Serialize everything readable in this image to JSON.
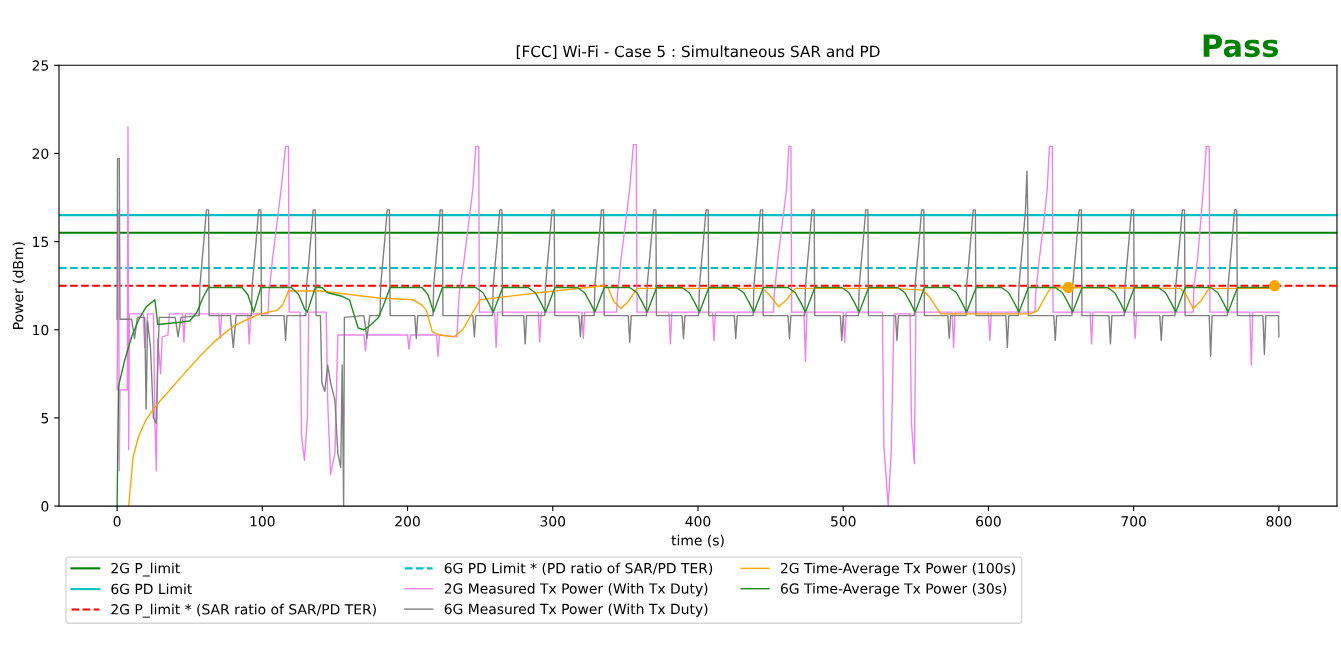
{
  "chart_data": {
    "type": "line",
    "title": "[FCC] Wi-Fi - Case 5 : Simultaneous SAR and PD",
    "xlabel": "time (s)",
    "ylabel": "Power (dBm)",
    "annotations": [
      "Pass"
    ],
    "xlim": [
      -40,
      840
    ],
    "ylim": [
      0,
      25
    ],
    "xticks": [
      0,
      100,
      200,
      300,
      400,
      500,
      600,
      700,
      800
    ],
    "yticks": [
      0,
      5,
      10,
      15,
      20,
      25
    ],
    "grid": false,
    "legend": "bottom",
    "ref_lines": [
      {
        "axis": "y",
        "value": 15.5,
        "label": "2G P_limit",
        "color": "#008000",
        "line_style": "solid"
      },
      {
        "axis": "y",
        "value": 16.5,
        "label": "6G PD Limit",
        "color": "#00bfbf",
        "line_style": "solid"
      },
      {
        "axis": "y",
        "value": 12.5,
        "label": "2G P_limit * (SAR ratio of SAR/PD TER)",
        "color": "#ff0000",
        "line_style": "dashed"
      },
      {
        "axis": "y",
        "value": 13.5,
        "label": "6G PD Limit * (PD ratio of SAR/PD TER)",
        "color": "#00bfbf",
        "line_style": "dashed"
      }
    ],
    "series": [
      {
        "name": "2G Measured Tx Power (With Tx Duty)",
        "color": "#ee82ee",
        "x": [
          0,
          1,
          1.5,
          2,
          7,
          7.5,
          8,
          8.5,
          18,
          19,
          21,
          25,
          26,
          27,
          28,
          30,
          31,
          35,
          36,
          45,
          46,
          47,
          70,
          71,
          72,
          90,
          91,
          92,
          104,
          104.5,
          107,
          110,
          113,
          116,
          118,
          118.5,
          126,
          127,
          129,
          131,
          132,
          144,
          145,
          147,
          150,
          152,
          170,
          171,
          172,
          200,
          201,
          202,
          220,
          221,
          222,
          234,
          235.5,
          239,
          242,
          245,
          247,
          249,
          249.5,
          260,
          261,
          262,
          290,
          291,
          292,
          320,
          321,
          322,
          344,
          344.5,
          347,
          350,
          353,
          355.5,
          357.5,
          358,
          380,
          381,
          382,
          410,
          411,
          412,
          452,
          452.5,
          455,
          458,
          461,
          462.5,
          464,
          464.5,
          473,
          474,
          475,
          500,
          501,
          502,
          527,
          528,
          531,
          533,
          535,
          546,
          547,
          549,
          550,
          575,
          576,
          577,
          600,
          601,
          602,
          632,
          632.5,
          635,
          638,
          640.5,
          642,
          644,
          644.5,
          670,
          671,
          672,
          700,
          701,
          702,
          741,
          741.5,
          744,
          746,
          748,
          750,
          752,
          752.5,
          780,
          781,
          782,
          800
        ],
        "values": [
          6.6,
          16.8,
          2.0,
          6.6,
          6.6,
          21.5,
          3.2,
          10.9,
          10.9,
          9,
          10.9,
          10.9,
          5,
          2.0,
          9.5,
          7.5,
          9.6,
          9.7,
          10.9,
          10.9,
          9.3,
          10.9,
          10.9,
          9.5,
          10.9,
          10.9,
          9.2,
          10.9,
          10.9,
          12,
          14,
          16,
          18,
          20.4,
          20.4,
          11,
          11,
          4,
          2.6,
          5,
          11,
          11,
          6,
          1.8,
          3,
          9.7,
          9.7,
          8.8,
          9.7,
          9.7,
          8.9,
          9.7,
          9.7,
          8.5,
          9.7,
          9.6,
          12,
          14,
          16,
          18,
          20.4,
          20.4,
          11,
          11,
          9,
          11,
          11,
          9.3,
          11,
          11,
          9.5,
          11,
          11,
          12,
          14,
          16,
          18,
          20.5,
          20.5,
          11,
          11,
          9.2,
          11,
          11,
          9.4,
          11,
          11,
          12,
          14,
          16,
          18,
          20.4,
          20.4,
          11,
          11,
          8.2,
          11,
          11,
          9.3,
          11,
          11,
          3.4,
          0,
          3,
          10.9,
          10.9,
          4.7,
          2.4,
          11,
          11,
          9,
          11,
          11,
          9.4,
          11,
          11,
          12,
          14,
          16,
          18,
          20.4,
          20.4,
          11,
          11,
          9.2,
          11,
          11,
          9.5,
          11,
          11,
          12.5,
          14,
          16,
          18,
          20.4,
          20.4,
          11,
          11,
          8,
          11,
          11
        ]
      },
      {
        "name": "6G Measured Tx Power (With Tx Duty)",
        "color": "#808080",
        "x": [
          0,
          0.3,
          1.5,
          2,
          10,
          12,
          14,
          19,
          20,
          21,
          23,
          25,
          27,
          28,
          29,
          40,
          42,
          44,
          56.5,
          57,
          59.5,
          61.5,
          63,
          63.4,
          78,
          80,
          82,
          92.5,
          93,
          95.5,
          97.5,
          99,
          99.4,
          115,
          116,
          117,
          130,
          130.5,
          133,
          135,
          136.5,
          137,
          140,
          141,
          143,
          145,
          147,
          150,
          152,
          154,
          155,
          156,
          156.5,
          170,
          172,
          174,
          181,
          181.5,
          184,
          186,
          187.5,
          188,
          205,
          206,
          207,
          217.5,
          218,
          220.5,
          222.5,
          224,
          224.4,
          245,
          246,
          247,
          258.5,
          259,
          261.5,
          263.5,
          265,
          265.4,
          280,
          281,
          282,
          294.5,
          295,
          297.5,
          299.5,
          301,
          301.4,
          318,
          319,
          320,
          328.5,
          329,
          331.5,
          333.5,
          335,
          335.4,
          352,
          353,
          354,
          364.5,
          365,
          367.5,
          369.5,
          371,
          371.4,
          389,
          390,
          391,
          400.5,
          401,
          403.5,
          405.5,
          407,
          407.4,
          425,
          426,
          427,
          438,
          438.5,
          441,
          443,
          444.5,
          444.9,
          462,
          463,
          464,
          473.5,
          474,
          476.5,
          478.5,
          480,
          480.4,
          498,
          499,
          500,
          510.5,
          511,
          513.5,
          515.5,
          517,
          517.4,
          536,
          537,
          538,
          549,
          549.5,
          552,
          554,
          555.5,
          555.9,
          572,
          573,
          574,
          584.5,
          585,
          587.5,
          589.5,
          591,
          591.4,
          612,
          613,
          614,
          620.5,
          621,
          623.5,
          625.5,
          626.5,
          627,
          627.4,
          645,
          646,
          647,
          657.5,
          658,
          660.5,
          662.5,
          664,
          664.4,
          683,
          684,
          685,
          693.5,
          694,
          696.5,
          698.5,
          700,
          700.4,
          718,
          719,
          720,
          728.5,
          729,
          731.5,
          733.5,
          735,
          735.4,
          752,
          753,
          754,
          764.5,
          765,
          767.5,
          769.5,
          771,
          771.4,
          789,
          790,
          791,
          799.7,
          800
        ],
        "values": [
          10.6,
          19.7,
          19.7,
          10.6,
          10.6,
          9.5,
          10.7,
          10.7,
          5.5,
          10.5,
          9,
          5,
          4.7,
          8,
          10.7,
          10.7,
          9.6,
          10.7,
          10.8,
          12.5,
          14.8,
          16.8,
          16.8,
          10.8,
          10.8,
          9.0,
          10.8,
          10.8,
          12.5,
          14.8,
          16.8,
          16.8,
          10.8,
          10.8,
          9.4,
          10.8,
          10.8,
          12.5,
          14.8,
          16.8,
          16.8,
          10.8,
          10.8,
          7,
          6.5,
          8,
          7,
          6,
          3,
          2.2,
          8,
          0,
          10.7,
          10.8,
          9.5,
          10.8,
          10.8,
          12.5,
          14.8,
          16.8,
          16.8,
          10.8,
          10.8,
          9.5,
          10.8,
          10.8,
          12.5,
          14.8,
          16.8,
          16.8,
          10.8,
          10.8,
          9.6,
          10.8,
          10.8,
          12.5,
          14.8,
          16.8,
          16.8,
          10.8,
          10.8,
          9.2,
          10.8,
          10.8,
          12.5,
          14.8,
          16.8,
          16.8,
          10.8,
          10.8,
          9.6,
          10.8,
          10.8,
          12.5,
          14.8,
          16.8,
          16.8,
          10.8,
          10.8,
          9.3,
          10.8,
          10.8,
          12.5,
          14.8,
          16.8,
          16.8,
          10.8,
          10.8,
          9.5,
          10.8,
          10.8,
          12.5,
          14.8,
          16.8,
          16.8,
          10.8,
          10.8,
          9.5,
          10.8,
          10.8,
          12.5,
          14.8,
          16.8,
          16.8,
          10.8,
          10.8,
          9.5,
          10.8,
          10.8,
          12.5,
          14.8,
          16.8,
          16.8,
          10.8,
          10.8,
          9.4,
          10.8,
          10.8,
          12.5,
          14.8,
          16.8,
          16.8,
          10.8,
          10.8,
          9.4,
          10.8,
          10.8,
          12.5,
          14.8,
          16.8,
          16.8,
          10.8,
          10.8,
          9.5,
          10.8,
          10.8,
          12.5,
          14.8,
          16.8,
          16.8,
          10.8,
          10.8,
          9.0,
          10.8,
          10.8,
          12.5,
          14.8,
          16.8,
          19.0,
          16.8,
          10.8,
          10.8,
          9.4,
          10.8,
          10.8,
          12.5,
          14.8,
          16.8,
          16.8,
          10.8,
          10.8,
          9.2,
          10.8,
          10.8,
          12.5,
          14.8,
          16.8,
          16.8,
          10.8,
          10.8,
          9.4,
          10.8,
          10.8,
          12.5,
          14.8,
          16.8,
          16.8,
          10.8,
          10.8,
          8.5,
          10.8,
          10.8,
          12.5,
          14.8,
          16.8,
          16.8,
          10.8,
          10.8,
          8.6,
          10.8,
          10.8,
          9.6
        ]
      },
      {
        "name": "2G Time-Average Tx Power (100s)",
        "color": "#ffa500",
        "x": [
          8,
          11,
          15,
          20,
          25,
          30,
          36.5,
          45,
          57,
          68,
          80,
          90,
          98.6,
          110,
          114,
          118,
          140,
          160,
          180,
          204,
          210,
          213,
          217,
          222,
          232,
          238,
          245,
          250,
          290,
          335,
          338,
          342,
          347,
          352,
          358,
          444,
          449,
          455.6,
          461,
          467,
          535,
          555,
          560,
          567,
          629,
          634,
          640,
          643,
          732,
          736,
          741,
          746,
          752,
          797
        ],
        "values": [
          0,
          2.8,
          4,
          4.9,
          5.5,
          6.0,
          6.6,
          7.4,
          8.5,
          9.4,
          10.2,
          10.6,
          10.9,
          11.1,
          11.4,
          12.2,
          12.2,
          12.0,
          11.8,
          11.7,
          11.4,
          11.1,
          9.9,
          9.7,
          9.6,
          10.0,
          11.0,
          11.7,
          12.1,
          12.5,
          12.4,
          11.6,
          11.2,
          11.6,
          12.35,
          12.35,
          12.0,
          11.3,
          11.7,
          12.35,
          12.35,
          12.25,
          11.8,
          10.9,
          10.9,
          11.1,
          12.0,
          12.4,
          12.35,
          12.0,
          11.2,
          11.6,
          12.35,
          12.35
        ]
      },
      {
        "name": "6G Time-Average Tx Power (30s)",
        "color": "#228b22",
        "x": [
          0,
          1,
          5,
          10,
          15,
          20,
          26,
          28,
          40,
          50,
          55,
          59,
          63,
          86,
          90,
          94,
          99,
          120,
          125,
          129,
          131,
          136.5,
          141,
          145,
          155,
          160,
          166,
          170,
          175,
          180,
          184,
          188,
          210,
          214,
          218,
          224,
          247,
          252,
          256,
          259,
          265.5,
          283,
          288,
          292,
          295,
          301.5,
          317,
          322,
          326,
          329,
          335.5,
          353,
          358,
          362,
          365,
          371.5,
          389,
          394,
          398,
          401,
          407.5,
          426.5,
          431.5,
          435.5,
          438.5,
          445,
          462,
          467,
          471,
          474,
          480.5,
          499,
          504,
          508,
          511,
          517.5,
          537.5,
          542.5,
          546.5,
          549.5,
          556,
          573,
          578,
          582,
          585,
          591.5,
          609,
          614,
          618,
          621,
          627.5,
          646,
          651,
          655,
          658,
          664.5,
          682,
          687,
          691,
          694,
          700.5,
          717,
          722,
          726,
          729,
          735.5,
          753,
          758,
          762,
          765,
          771.5,
          797
        ],
        "values": [
          0,
          6.8,
          8.2,
          9.6,
          10.6,
          11.3,
          11.7,
          10.3,
          10.4,
          10.5,
          11,
          11.8,
          12.4,
          12.4,
          12,
          11,
          12.4,
          12.4,
          12,
          11.2,
          11.0,
          12.4,
          12.4,
          12.1,
          11.9,
          11.7,
          10.1,
          10.0,
          10.3,
          10.7,
          11.5,
          12.4,
          12.4,
          12,
          11,
          12.4,
          12.4,
          12.1,
          11.5,
          11.0,
          12.4,
          12.4,
          12.1,
          11.5,
          11.0,
          12.4,
          12.4,
          12.1,
          11.5,
          11.0,
          12.4,
          12.4,
          12.1,
          11.5,
          11.0,
          12.4,
          12.4,
          12.1,
          11.5,
          11.0,
          12.4,
          12.4,
          12.1,
          11.5,
          11.0,
          12.4,
          12.4,
          12.1,
          11.5,
          11.0,
          12.4,
          12.4,
          12.1,
          11.5,
          11.0,
          12.4,
          12.4,
          12.1,
          11.5,
          11.0,
          12.4,
          12.4,
          12.1,
          11.5,
          11.0,
          12.4,
          12.4,
          12.1,
          11.5,
          11.0,
          12.4,
          12.4,
          12.1,
          11.5,
          11.0,
          12.4,
          12.4,
          12.1,
          11.5,
          11.0,
          12.4,
          12.4,
          12.1,
          11.5,
          11.0,
          12.4,
          12.4,
          12.1,
          11.5,
          11.0,
          12.4,
          12.4
        ]
      },
      {
        "color": "#ffa500",
        "type": "scatter",
        "marker": "circle",
        "x": [
          655,
          797
        ],
        "values": [
          12.4,
          12.5
        ]
      }
    ]
  }
}
